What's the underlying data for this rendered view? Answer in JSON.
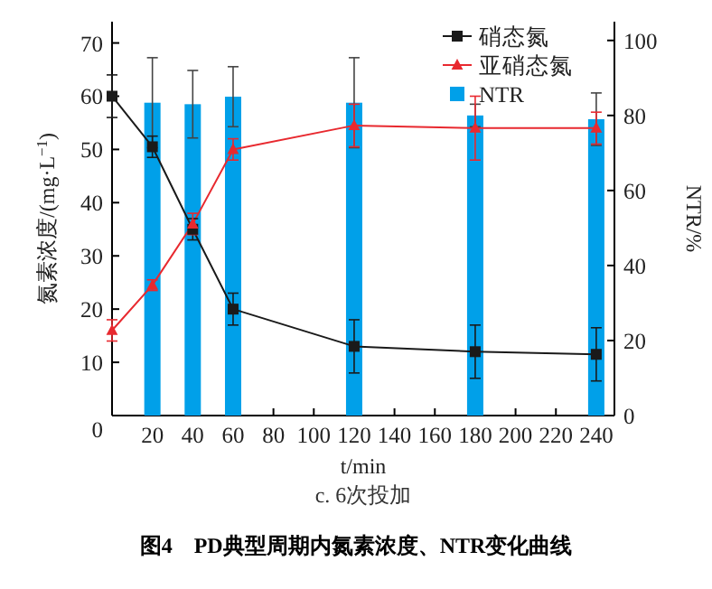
{
  "chart_data": {
    "type": "line",
    "title": "图4　PD典型周期内氮素浓度、NTR变化曲线",
    "subtitle": "c. 6次投加",
    "xlabel": "t/min",
    "ylabel": "氮素浓度/(mg·L$^{−1}$)",
    "y2label": "NTR/%",
    "xlim": [
      0,
      249
    ],
    "xticks": [
      20,
      40,
      60,
      80,
      100,
      120,
      140,
      160,
      180,
      200,
      220,
      240
    ],
    "ylim": [
      0,
      74
    ],
    "yticks": [
      0,
      10,
      20,
      30,
      40,
      50,
      60,
      70
    ],
    "y2lim": [
      0,
      105
    ],
    "y2ticks": [
      0,
      20,
      40,
      60,
      80,
      100
    ],
    "legend": "top right",
    "grid": false,
    "series": [
      {
        "name": "NTR",
        "type": "bar",
        "axis": "y2",
        "color": "#00a0e9",
        "x": [
          20,
          40,
          60,
          120,
          180,
          240
        ],
        "values": [
          83.4,
          83,
          85,
          83.4,
          80,
          79
        ],
        "errors": [
          12,
          9,
          8,
          12,
          3,
          7
        ]
      },
      {
        "name": "硝态氮",
        "color": "#1a1a1a",
        "marker": "square",
        "x": [
          0,
          20,
          40,
          60,
          120,
          180,
          240
        ],
        "values": [
          60,
          50.5,
          35,
          20,
          13,
          12,
          11.5
        ],
        "errors": [
          4,
          2,
          2,
          3,
          5,
          5,
          5
        ]
      },
      {
        "name": "亚硝态氮",
        "color": "#e8292f",
        "marker": "triangle",
        "x": [
          0,
          20,
          40,
          60,
          120,
          180,
          240
        ],
        "values": [
          16,
          24.5,
          36,
          50,
          54.5,
          54,
          54
        ],
        "errors": [
          2,
          1,
          2,
          2,
          4,
          6,
          3
        ]
      }
    ]
  }
}
